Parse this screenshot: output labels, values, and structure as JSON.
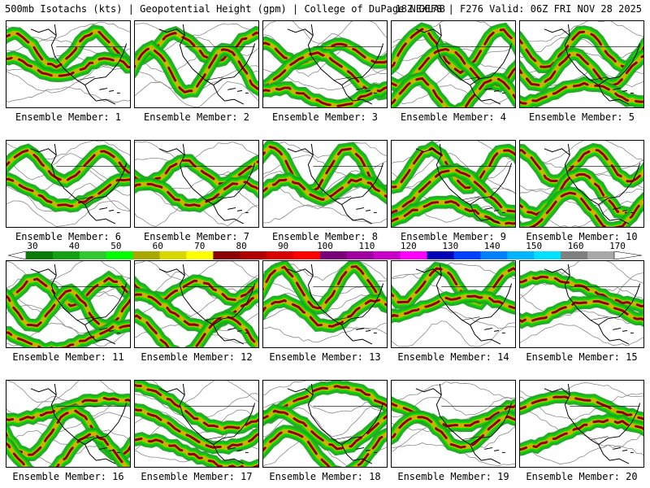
{
  "header": {
    "title": "500mb Isotachs (kts) | Geopotential Height (gpm) | College of DuPage NEXLAB",
    "run_info": "18Z GEFS | F276 Valid: 06Z FRI NOV 28 2025"
  },
  "panels": [
    {
      "label": "Ensemble Member: 1"
    },
    {
      "label": "Ensemble Member: 2"
    },
    {
      "label": "Ensemble Member: 3"
    },
    {
      "label": "Ensemble Member: 4"
    },
    {
      "label": "Ensemble Member: 5"
    },
    {
      "label": "Ensemble Member: 6"
    },
    {
      "label": "Ensemble Member: 7"
    },
    {
      "label": "Ensemble Member: 8"
    },
    {
      "label": "Ensemble Member: 9"
    },
    {
      "label": "Ensemble Member: 10"
    },
    {
      "label": "Ensemble Member: 11"
    },
    {
      "label": "Ensemble Member: 12"
    },
    {
      "label": "Ensemble Member: 13"
    },
    {
      "label": "Ensemble Member: 14"
    },
    {
      "label": "Ensemble Member: 15"
    },
    {
      "label": "Ensemble Member: 16"
    },
    {
      "label": "Ensemble Member: 17"
    },
    {
      "label": "Ensemble Member: 18"
    },
    {
      "label": "Ensemble Member: 19"
    },
    {
      "label": "Ensemble Member: 20"
    }
  ],
  "color_scale": {
    "unit": "kts",
    "labels": [
      "30",
      "40",
      "50",
      "60",
      "70",
      "80",
      "90",
      "100",
      "110",
      "120",
      "130",
      "140",
      "150",
      "160",
      "170"
    ],
    "colors": [
      "#0a7a0a",
      "#14a014",
      "#32c832",
      "#00ff00",
      "#a8a800",
      "#d8d800",
      "#ffff00",
      "#8b0000",
      "#b00000",
      "#d80000",
      "#ff0000",
      "#7a007a",
      "#a000a0",
      "#c800c8",
      "#ff00ff",
      "#0000b4",
      "#0040ff",
      "#0080ff",
      "#00b4ff",
      "#00e0ff",
      "#808080",
      "#a8a8a8"
    ]
  }
}
